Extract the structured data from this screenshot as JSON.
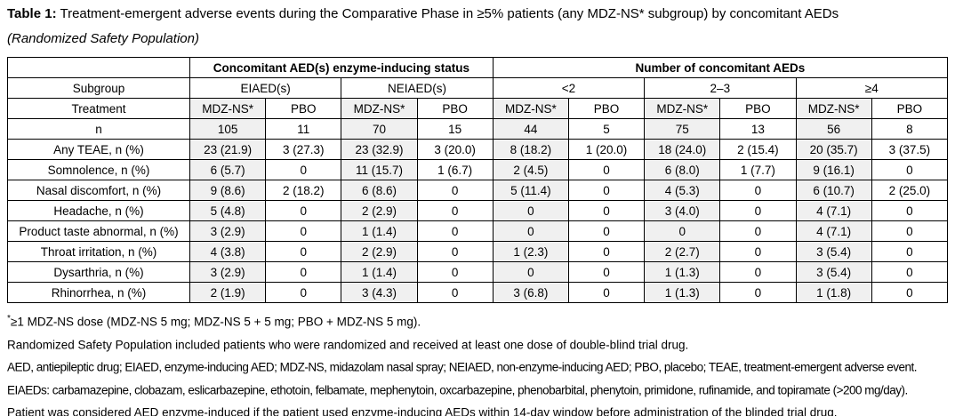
{
  "caption": {
    "label": "Table 1:",
    "text": " Treatment-emergent adverse events during the Comparative Phase in ≥5% patients (any MDZ-NS* subgroup) by concomitant AEDs",
    "population": "(Randomized Safety Population)"
  },
  "table": {
    "group_headers": [
      "Concomitant AED(s) enzyme-inducing status",
      "Number of concomitant AEDs"
    ],
    "subgroup_label": "Subgroup",
    "subgroups": [
      "EIAED(s)",
      "NEIAED(s)",
      "<2",
      "2–3",
      "≥4"
    ],
    "treatment_label": "Treatment",
    "treatments": [
      "MDZ-NS*",
      "PBO",
      "MDZ-NS*",
      "PBO",
      "MDZ-NS*",
      "PBO",
      "MDZ-NS*",
      "PBO",
      "MDZ-NS*",
      "PBO"
    ],
    "rows": [
      {
        "label": "n",
        "indent": false,
        "values": [
          "105",
          "11",
          "70",
          "15",
          "44",
          "5",
          "75",
          "13",
          "56",
          "8"
        ]
      },
      {
        "label": "Any TEAE, n (%)",
        "indent": false,
        "values": [
          "23 (21.9)",
          "3 (27.3)",
          "23 (32.9)",
          "3 (20.0)",
          "8 (18.2)",
          "1 (20.0)",
          "18 (24.0)",
          "2 (15.4)",
          "20 (35.7)",
          "3 (37.5)"
        ]
      },
      {
        "label": "Somnolence, n (%)",
        "indent": true,
        "values": [
          "6 (5.7)",
          "0",
          "11 (15.7)",
          "1 (6.7)",
          "2 (4.5)",
          "0",
          "6 (8.0)",
          "1 (7.7)",
          "9 (16.1)",
          "0"
        ]
      },
      {
        "label": "Nasal discomfort, n (%)",
        "indent": true,
        "values": [
          "9 (8.6)",
          "2 (18.2)",
          "6 (8.6)",
          "0",
          "5 (11.4)",
          "0",
          "4 (5.3)",
          "0",
          "6 (10.7)",
          "2 (25.0)"
        ]
      },
      {
        "label": "Headache, n (%)",
        "indent": true,
        "values": [
          "5 (4.8)",
          "0",
          "2 (2.9)",
          "0",
          "0",
          "0",
          "3 (4.0)",
          "0",
          "4 (7.1)",
          "0"
        ]
      },
      {
        "label": "Product taste abnormal, n (%)",
        "indent": true,
        "values": [
          "3 (2.9)",
          "0",
          "1 (1.4)",
          "0",
          "0",
          "0",
          "0",
          "0",
          "4 (7.1)",
          "0"
        ]
      },
      {
        "label": "Throat irritation, n (%)",
        "indent": true,
        "values": [
          "4 (3.8)",
          "0",
          "2 (2.9)",
          "0",
          "1 (2.3)",
          "0",
          "2 (2.7)",
          "0",
          "3 (5.4)",
          "0"
        ]
      },
      {
        "label": "Dysarthria, n (%)",
        "indent": true,
        "values": [
          "3 (2.9)",
          "0",
          "1 (1.4)",
          "0",
          "0",
          "0",
          "1 (1.3)",
          "0",
          "3 (5.4)",
          "0"
        ]
      },
      {
        "label": "Rhinorrhea, n (%)",
        "indent": true,
        "values": [
          "2 (1.9)",
          "0",
          "3 (4.3)",
          "0",
          "3 (6.8)",
          "0",
          "1 (1.3)",
          "0",
          "1 (1.8)",
          "0"
        ]
      }
    ]
  },
  "footnotes": [
    {
      "marker": "*",
      "text": "≥1 MDZ-NS dose (MDZ-NS 5 mg; MDZ-NS 5 + 5 mg; PBO + MDZ-NS 5 mg)."
    },
    {
      "marker": "",
      "text": "Randomized Safety Population included patients who were randomized and received at least one dose of double-blind trial drug."
    },
    {
      "marker": "",
      "text": "AED, antiepileptic drug; EIAED, enzyme-inducing AED; MDZ-NS, midazolam nasal spray; NEIAED, non-enzyme-inducing AED; PBO, placebo; TEAE, treatment-emergent adverse event."
    },
    {
      "marker": "",
      "text": "EIAEDs: carbamazepine, clobazam, eslicarbazepine, ethotoin, felbamate, mephenytoin, oxcarbazepine, phenobarbital, phenytoin, primidone, rufinamide, and topiramate (>200 mg/day)."
    },
    {
      "marker": "",
      "text": "Patient was considered AED enzyme-induced if the patient used enzyme-inducing AEDs within 14-day window before administration of the blinded trial drug."
    }
  ],
  "colors": {
    "shaded_column_bg": "#f0f0f0",
    "border": "#000000",
    "text": "#000000"
  }
}
